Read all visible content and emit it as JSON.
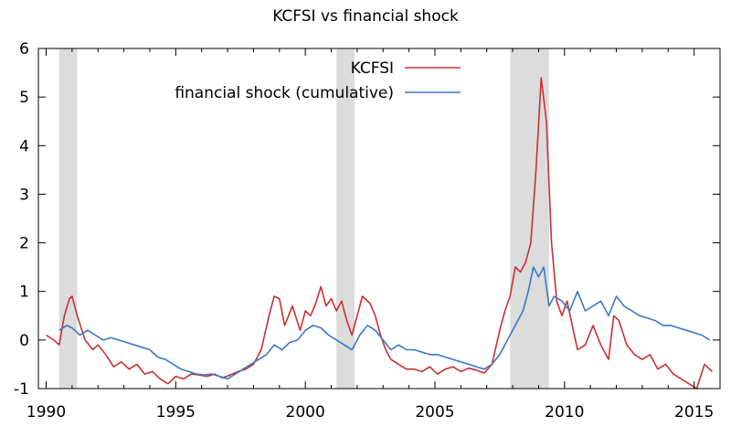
{
  "chart_data": {
    "type": "line",
    "title": "KCFSI vs financial shock",
    "xlabel": "",
    "ylabel": "",
    "xlim": [
      1989.7,
      2016.0
    ],
    "ylim": [
      -1,
      6
    ],
    "x_ticks": [
      1990,
      1995,
      2000,
      2005,
      2010,
      2015
    ],
    "y_ticks": [
      -1,
      0,
      1,
      2,
      3,
      4,
      5,
      6
    ],
    "grid": false,
    "legend_position": "top-center",
    "shaded_periods": [
      [
        1990.5,
        1991.2
      ],
      [
        2001.2,
        2001.9
      ],
      [
        2007.9,
        2009.4
      ]
    ],
    "series": [
      {
        "name": "KCFSI",
        "color": "#c83232",
        "x": [
          1990.0,
          1990.3,
          1990.5,
          1990.7,
          1990.9,
          1991.0,
          1991.2,
          1991.5,
          1991.8,
          1992.0,
          1992.3,
          1992.6,
          1992.9,
          1993.2,
          1993.5,
          1993.8,
          1994.1,
          1994.4,
          1994.7,
          1995.0,
          1995.3,
          1995.6,
          1995.9,
          1996.2,
          1996.5,
          1996.8,
          1997.1,
          1997.4,
          1997.7,
          1998.0,
          1998.3,
          1998.6,
          1998.8,
          1999.0,
          1999.2,
          1999.5,
          1999.8,
          2000.0,
          2000.2,
          2000.4,
          2000.6,
          2000.8,
          2001.0,
          2001.2,
          2001.4,
          2001.6,
          2001.8,
          2002.0,
          2002.2,
          2002.5,
          2002.7,
          2002.9,
          2003.1,
          2003.3,
          2003.6,
          2003.9,
          2004.2,
          2004.5,
          2004.8,
          2005.1,
          2005.4,
          2005.7,
          2006.0,
          2006.3,
          2006.6,
          2006.9,
          2007.2,
          2007.5,
          2007.7,
          2007.9,
          2008.1,
          2008.3,
          2008.5,
          2008.7,
          2008.9,
          2009.1,
          2009.3,
          2009.5,
          2009.7,
          2009.9,
          2010.1,
          2010.3,
          2010.5,
          2010.8,
          2011.1,
          2011.4,
          2011.7,
          2011.9,
          2012.1,
          2012.4,
          2012.7,
          2013.0,
          2013.3,
          2013.6,
          2013.9,
          2014.2,
          2014.5,
          2014.8,
          2015.1,
          2015.4,
          2015.7
        ],
        "y": [
          0.1,
          0.0,
          -0.1,
          0.5,
          0.85,
          0.9,
          0.5,
          0.0,
          -0.2,
          -0.1,
          -0.3,
          -0.55,
          -0.45,
          -0.6,
          -0.5,
          -0.7,
          -0.65,
          -0.8,
          -0.9,
          -0.75,
          -0.8,
          -0.7,
          -0.72,
          -0.75,
          -0.7,
          -0.78,
          -0.72,
          -0.65,
          -0.6,
          -0.5,
          -0.2,
          0.5,
          0.9,
          0.85,
          0.3,
          0.7,
          0.2,
          0.6,
          0.5,
          0.75,
          1.1,
          0.7,
          0.85,
          0.6,
          0.8,
          0.4,
          0.1,
          0.5,
          0.9,
          0.75,
          0.5,
          0.1,
          -0.2,
          -0.4,
          -0.5,
          -0.6,
          -0.6,
          -0.65,
          -0.55,
          -0.7,
          -0.6,
          -0.55,
          -0.65,
          -0.58,
          -0.62,
          -0.68,
          -0.5,
          0.2,
          0.6,
          0.9,
          1.5,
          1.4,
          1.6,
          2.0,
          3.5,
          5.4,
          4.5,
          2.0,
          0.8,
          0.5,
          0.8,
          0.3,
          -0.2,
          -0.1,
          0.3,
          -0.1,
          -0.4,
          0.5,
          0.4,
          -0.1,
          -0.3,
          -0.4,
          -0.3,
          -0.6,
          -0.5,
          -0.7,
          -0.8,
          -0.9,
          -1.0,
          -0.5,
          -0.65
        ]
      },
      {
        "name": "financial shock (cumulative)",
        "color": "#3c78c8",
        "x": [
          1990.5,
          1990.8,
          1991.0,
          1991.3,
          1991.6,
          1991.9,
          1992.2,
          1992.5,
          1992.8,
          1993.1,
          1993.4,
          1993.7,
          1994.0,
          1994.3,
          1994.6,
          1994.9,
          1995.2,
          1995.5,
          1995.8,
          1996.1,
          1996.4,
          1996.7,
          1997.0,
          1997.3,
          1997.6,
          1997.9,
          1998.2,
          1998.5,
          1998.8,
          1999.1,
          1999.4,
          1999.7,
          2000.0,
          2000.3,
          2000.6,
          2000.9,
          2001.2,
          2001.5,
          2001.8,
          2002.1,
          2002.4,
          2002.7,
          2003.0,
          2003.3,
          2003.6,
          2003.9,
          2004.2,
          2004.5,
          2004.8,
          2005.1,
          2005.4,
          2005.7,
          2006.0,
          2006.3,
          2006.6,
          2006.9,
          2007.2,
          2007.5,
          2007.8,
          2008.1,
          2008.4,
          2008.6,
          2008.8,
          2009.0,
          2009.2,
          2009.4,
          2009.6,
          2009.9,
          2010.2,
          2010.5,
          2010.8,
          2011.1,
          2011.4,
          2011.7,
          2012.0,
          2012.3,
          2012.6,
          2012.9,
          2013.2,
          2013.5,
          2013.8,
          2014.1,
          2014.4,
          2014.7,
          2015.0,
          2015.3,
          2015.6
        ],
        "y": [
          0.2,
          0.3,
          0.25,
          0.1,
          0.2,
          0.1,
          0.0,
          0.05,
          0.0,
          -0.05,
          -0.1,
          -0.15,
          -0.2,
          -0.35,
          -0.4,
          -0.5,
          -0.6,
          -0.65,
          -0.7,
          -0.72,
          -0.7,
          -0.75,
          -0.8,
          -0.7,
          -0.6,
          -0.5,
          -0.4,
          -0.3,
          -0.1,
          -0.2,
          -0.05,
          0.0,
          0.2,
          0.3,
          0.25,
          0.1,
          0.0,
          -0.1,
          -0.2,
          0.1,
          0.3,
          0.2,
          0.0,
          -0.2,
          -0.1,
          -0.2,
          -0.2,
          -0.25,
          -0.3,
          -0.3,
          -0.35,
          -0.4,
          -0.45,
          -0.5,
          -0.55,
          -0.6,
          -0.5,
          -0.3,
          0.0,
          0.3,
          0.6,
          1.0,
          1.5,
          1.3,
          1.5,
          0.7,
          0.9,
          0.8,
          0.6,
          1.0,
          0.6,
          0.7,
          0.8,
          0.5,
          0.9,
          0.7,
          0.6,
          0.5,
          0.45,
          0.4,
          0.3,
          0.3,
          0.25,
          0.2,
          0.15,
          0.1,
          0.0
        ]
      }
    ]
  }
}
